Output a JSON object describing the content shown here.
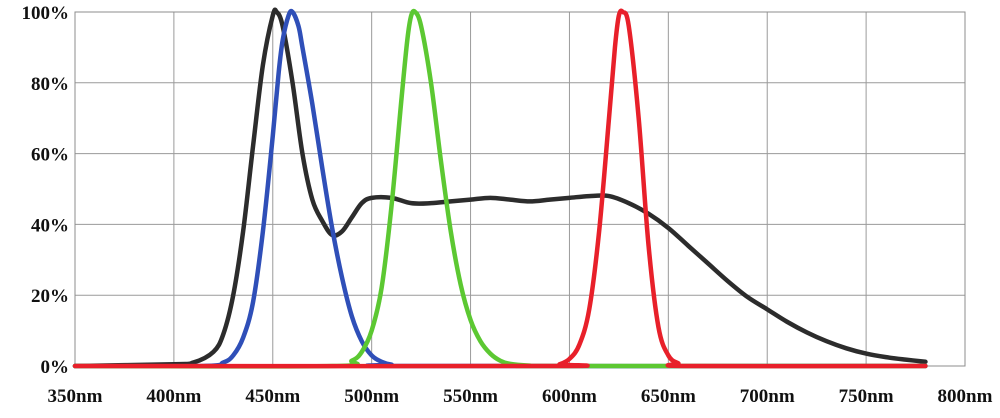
{
  "chart_data": {
    "type": "line",
    "title": "",
    "xlabel": "",
    "ylabel": "",
    "xlim": [
      350,
      800
    ],
    "ylim": [
      0,
      100
    ],
    "x_ticks": [
      350,
      400,
      450,
      500,
      550,
      600,
      650,
      700,
      750,
      800
    ],
    "x_tick_labels": [
      "350nm",
      "400nm",
      "450nm",
      "500nm",
      "550nm",
      "600nm",
      "650nm",
      "700nm",
      "750nm",
      "800nm"
    ],
    "y_ticks": [
      0,
      20,
      40,
      60,
      80,
      100
    ],
    "y_tick_labels": [
      "0%",
      "20%",
      "40%",
      "60%",
      "80%",
      "100%"
    ],
    "grid": true,
    "legend": "none",
    "series": [
      {
        "color": "#2c2c2c",
        "x": [
          350,
          400,
          410,
          420,
          425,
          430,
          435,
          440,
          445,
          450,
          452,
          455,
          460,
          465,
          470,
          475,
          480,
          485,
          490,
          495,
          500,
          510,
          520,
          530,
          540,
          550,
          560,
          570,
          580,
          590,
          600,
          610,
          620,
          630,
          640,
          650,
          660,
          670,
          680,
          690,
          700,
          710,
          720,
          730,
          740,
          750,
          760,
          770,
          780
        ],
        "y": [
          0,
          0.5,
          1,
          4,
          9,
          20,
          38,
          62,
          85,
          99,
          100,
          96,
          80,
          60,
          47,
          41,
          37,
          38,
          42,
          46,
          47.5,
          47.5,
          46,
          46,
          46.5,
          47,
          47.5,
          47,
          46.5,
          47,
          47.5,
          48,
          48,
          46,
          43,
          39,
          34,
          29,
          24,
          19.5,
          16,
          12.5,
          9.5,
          7,
          5,
          3.5,
          2.5,
          1.8,
          1.2
        ]
      },
      {
        "color": "#2f4fb8",
        "x": [
          350,
          415,
          425,
          430,
          435,
          440,
          445,
          450,
          453,
          455,
          458,
          460,
          463,
          465,
          470,
          475,
          480,
          485,
          490,
          495,
          500,
          505,
          510,
          520,
          780
        ],
        "y": [
          0,
          0,
          1,
          3,
          8,
          18,
          38,
          65,
          83,
          92,
          99,
          100,
          96,
          90,
          74,
          56,
          39,
          25,
          14,
          7,
          3,
          1.2,
          0.4,
          0,
          0
        ]
      },
      {
        "color": "#5cc832",
        "x": [
          350,
          480,
          490,
          495,
          500,
          505,
          510,
          515,
          518,
          520,
          522,
          525,
          530,
          535,
          540,
          545,
          550,
          555,
          560,
          565,
          570,
          580,
          590,
          780
        ],
        "y": [
          0,
          0,
          1.5,
          4,
          10,
          22,
          45,
          75,
          92,
          99,
          100,
          96,
          80,
          58,
          38,
          23,
          13,
          7,
          3.5,
          1.5,
          0.6,
          0.1,
          0,
          0
        ]
      },
      {
        "color": "#e8202a",
        "x": [
          350,
          590,
          595,
          600,
          605,
          610,
          615,
          620,
          623,
          625,
          627,
          630,
          635,
          640,
          645,
          650,
          655,
          660,
          780
        ],
        "y": [
          0,
          0,
          0.5,
          2,
          6,
          16,
          38,
          70,
          90,
          99,
          100,
          96,
          70,
          34,
          11,
          3,
          0.8,
          0,
          0
        ]
      }
    ]
  }
}
